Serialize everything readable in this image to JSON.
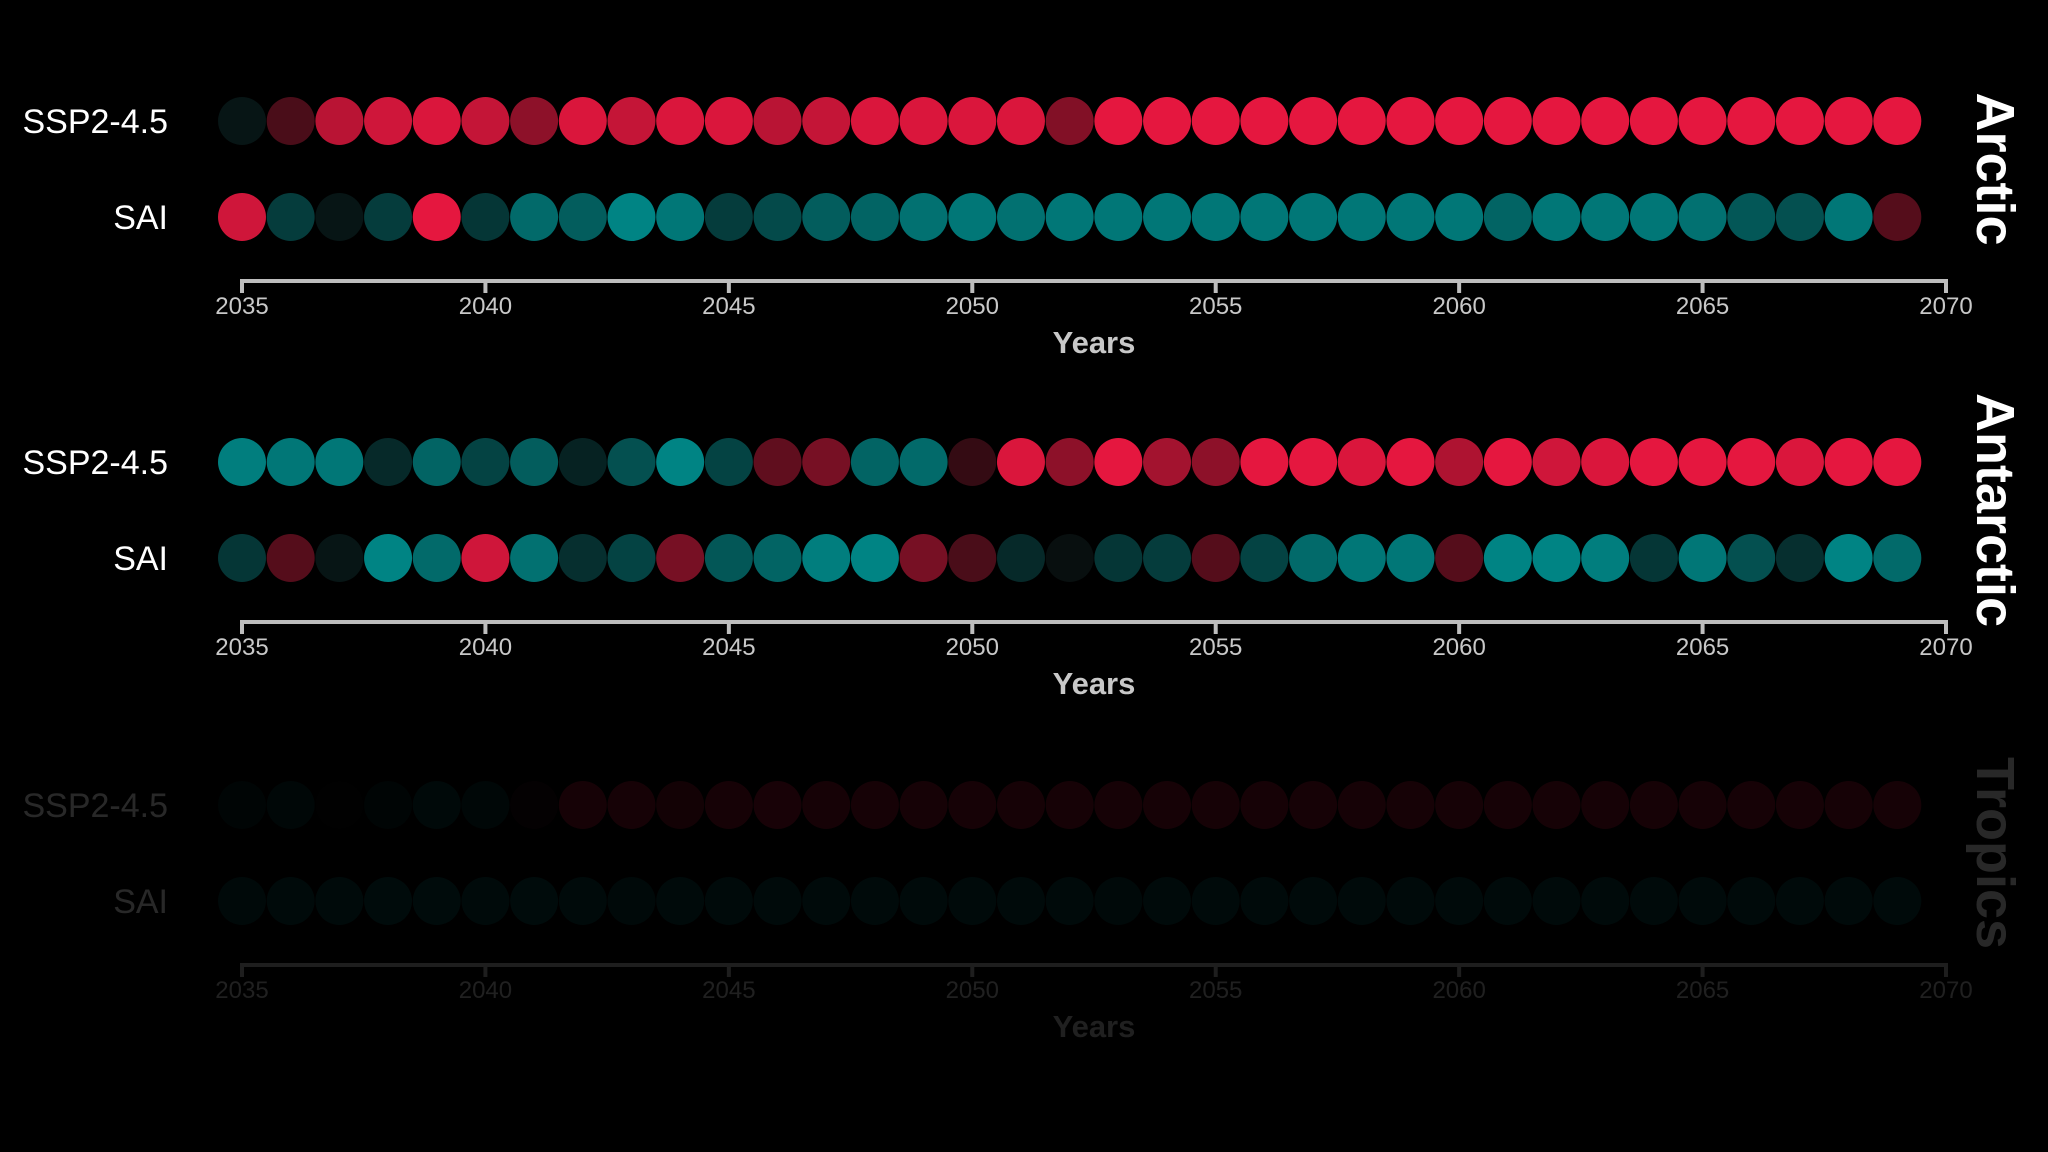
{
  "colors": {
    "background": "#000000",
    "warm": "#e5173f",
    "cool": "#008b8b",
    "label": "#ffffff",
    "axis": "#bdbdbd",
    "tick_label": "#c8c8c8"
  },
  "chart_data": [
    {
      "type": "scatter",
      "region": "Arctic",
      "xlabel": "Years",
      "x": [
        2035,
        2036,
        2037,
        2038,
        2039,
        2040,
        2041,
        2042,
        2043,
        2044,
        2045,
        2046,
        2047,
        2048,
        2049,
        2050,
        2051,
        2052,
        2053,
        2054,
        2055,
        2056,
        2057,
        2058,
        2059,
        2060,
        2061,
        2062,
        2063,
        2064,
        2065,
        2066,
        2067,
        2068,
        2069
      ],
      "xlim": [
        2035,
        2070
      ],
      "xticks": [
        2035,
        2040,
        2045,
        2050,
        2055,
        2060,
        2065,
        2070
      ],
      "opacity": 1.0,
      "series": [
        {
          "name": "SSP2-4.5",
          "values": [
            -0.1,
            0.3,
            0.8,
            0.9,
            0.95,
            0.85,
            0.6,
            0.95,
            0.85,
            0.95,
            0.95,
            0.8,
            0.85,
            0.95,
            0.95,
            0.95,
            0.95,
            0.55,
            1,
            1,
            1,
            1,
            1,
            1,
            1,
            1,
            1,
            1,
            1,
            1,
            1,
            1,
            1,
            1,
            1
          ]
        },
        {
          "name": "SAI",
          "values": [
            0.9,
            -0.4,
            -0.1,
            -0.4,
            1,
            -0.35,
            -0.75,
            -0.65,
            -0.95,
            -0.85,
            -0.4,
            -0.5,
            -0.65,
            -0.7,
            -0.8,
            -0.85,
            -0.8,
            -0.85,
            -0.85,
            -0.85,
            -0.85,
            -0.85,
            -0.85,
            -0.85,
            -0.85,
            -0.85,
            -0.7,
            -0.85,
            -0.85,
            -0.85,
            -0.8,
            -0.6,
            -0.55,
            -0.85,
            0.35
          ]
        }
      ]
    },
    {
      "type": "scatter",
      "region": "Antarctic",
      "xlabel": "Years",
      "x": [
        2035,
        2036,
        2037,
        2038,
        2039,
        2040,
        2041,
        2042,
        2043,
        2044,
        2045,
        2046,
        2047,
        2048,
        2049,
        2050,
        2051,
        2052,
        2053,
        2054,
        2055,
        2056,
        2057,
        2058,
        2059,
        2060,
        2061,
        2062,
        2063,
        2064,
        2065,
        2066,
        2067,
        2068,
        2069
      ],
      "xlim": [
        2035,
        2070
      ],
      "xticks": [
        2035,
        2040,
        2045,
        2050,
        2055,
        2060,
        2065,
        2070
      ],
      "opacity": 1.0,
      "series": [
        {
          "name": "SSP2-4.5",
          "values": [
            -0.9,
            -0.85,
            -0.85,
            -0.25,
            -0.7,
            -0.45,
            -0.65,
            -0.2,
            -0.55,
            -0.95,
            -0.45,
            0.4,
            0.5,
            -0.7,
            -0.75,
            0.2,
            0.95,
            0.6,
            1,
            0.7,
            0.6,
            1,
            1,
            0.95,
            1,
            0.75,
            1,
            0.9,
            0.95,
            1,
            1,
            1,
            0.95,
            1,
            1
          ]
        },
        {
          "name": "SAI",
          "values": [
            -0.35,
            0.35,
            -0.1,
            -0.95,
            -0.75,
            0.9,
            -0.8,
            -0.3,
            -0.45,
            0.5,
            -0.6,
            -0.7,
            -0.9,
            -0.95,
            0.5,
            0.3,
            -0.25,
            -0.05,
            -0.35,
            -0.4,
            0.35,
            -0.45,
            -0.75,
            -0.85,
            -0.85,
            0.35,
            -0.95,
            -0.95,
            -0.9,
            -0.35,
            -0.85,
            -0.55,
            -0.3,
            -0.95,
            -0.75
          ]
        }
      ]
    },
    {
      "type": "scatter",
      "region": "Tropics",
      "xlabel": "Years",
      "x": [
        2035,
        2036,
        2037,
        2038,
        2039,
        2040,
        2041,
        2042,
        2043,
        2044,
        2045,
        2046,
        2047,
        2048,
        2049,
        2050,
        2051,
        2052,
        2053,
        2054,
        2055,
        2056,
        2057,
        2058,
        2059,
        2060,
        2061,
        2062,
        2063,
        2064,
        2065,
        2066,
        2067,
        2068,
        2069
      ],
      "xlim": [
        2035,
        2070
      ],
      "xticks": [
        2035,
        2040,
        2045,
        2050,
        2055,
        2060,
        2065,
        2070
      ],
      "opacity": 0.16,
      "series": [
        {
          "name": "SSP2-4.5",
          "values": [
            -0.2,
            -0.3,
            0,
            -0.2,
            -0.4,
            -0.3,
            0.1,
            0.6,
            0.6,
            0.5,
            0.6,
            0.65,
            0.6,
            0.6,
            0.6,
            0.6,
            0.6,
            0.6,
            0.6,
            0.6,
            0.6,
            0.6,
            0.6,
            0.6,
            0.6,
            0.6,
            0.6,
            0.6,
            0.6,
            0.6,
            0.6,
            0.6,
            0.6,
            0.6,
            0.6
          ]
        },
        {
          "name": "SAI",
          "values": [
            -0.4,
            -0.45,
            -0.45,
            -0.5,
            -0.5,
            -0.45,
            -0.5,
            -0.45,
            -0.4,
            -0.45,
            -0.45,
            -0.45,
            -0.45,
            -0.45,
            -0.45,
            -0.45,
            -0.45,
            -0.45,
            -0.4,
            -0.45,
            -0.45,
            -0.45,
            -0.45,
            -0.45,
            -0.45,
            -0.45,
            -0.45,
            -0.45,
            -0.45,
            -0.45,
            -0.45,
            -0.45,
            -0.45,
            -0.45,
            -0.45
          ]
        }
      ]
    }
  ]
}
